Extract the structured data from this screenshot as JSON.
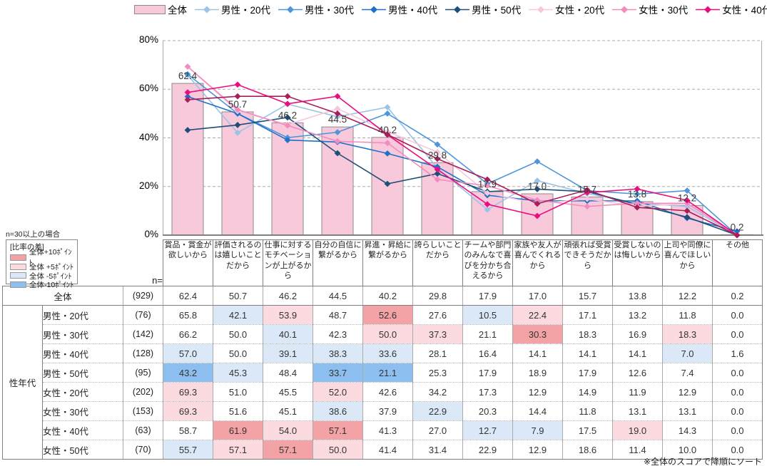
{
  "chart_data": {
    "type": "bar+line",
    "title": "",
    "categories": [
      "賞品・賞金が欲しいから",
      "評価されるのは嬉しいことだから",
      "仕事に対するモチベーションが上がるから",
      "自分の自信に繋がるから",
      "昇進・昇給に繋がるから",
      "誇らしいことだから",
      "チームや部門のみんなで喜びを分かち合えるから",
      "家族や友人が喜んでくれるから",
      "頑張れば受賞できそうだから",
      "受賞しないのは悔しいから",
      "上司や同僚に喜んでほしいから",
      "その他"
    ],
    "y_axis": {
      "min": 0,
      "max": 80,
      "tick_step": 20,
      "unit": "%",
      "tick_labels": [
        "0%",
        "20%",
        "40%",
        "60%",
        "80%"
      ],
      "grid": "dashed"
    },
    "bar_series": {
      "name": "全体",
      "values": [
        62.4,
        50.7,
        46.2,
        44.5,
        40.2,
        29.8,
        17.9,
        17.0,
        15.7,
        13.8,
        12.2,
        0.2
      ],
      "fill": "#F8C9DB",
      "stroke": "#8C8C8C",
      "data_labels": true
    },
    "line_series": [
      {
        "name": "男性・20代",
        "color": "#9CC3E6",
        "values": [
          65.8,
          42.1,
          53.9,
          48.7,
          52.6,
          27.6,
          10.5,
          22.4,
          17.1,
          13.2,
          11.8,
          0.0
        ]
      },
      {
        "name": "男性・30代",
        "color": "#4E95D9",
        "values": [
          66.2,
          50.0,
          40.1,
          42.3,
          50.0,
          37.3,
          21.1,
          30.3,
          18.3,
          16.9,
          18.3,
          0.0
        ]
      },
      {
        "name": "男性・40代",
        "color": "#2071C9",
        "values": [
          57.0,
          50.0,
          39.1,
          38.3,
          33.6,
          28.1,
          16.4,
          14.1,
          14.1,
          14.1,
          7.0,
          1.6
        ]
      },
      {
        "name": "男性・50代",
        "color": "#1F4E79",
        "values": [
          43.2,
          45.3,
          48.4,
          33.7,
          21.1,
          25.3,
          17.9,
          18.9,
          17.9,
          12.6,
          7.4,
          0.0
        ]
      },
      {
        "name": "女性・20代",
        "color": "#F7C7DB",
        "values": [
          69.3,
          51.0,
          45.5,
          52.0,
          42.6,
          34.2,
          17.3,
          12.9,
          14.9,
          11.9,
          12.9,
          0.0
        ]
      },
      {
        "name": "女性・30代",
        "color": "#F38BC0",
        "values": [
          69.3,
          51.6,
          45.1,
          38.6,
          37.9,
          22.9,
          20.3,
          14.4,
          11.8,
          13.1,
          13.1,
          0.0
        ]
      },
      {
        "name": "女性・40代",
        "color": "#EB0D7E",
        "values": [
          58.7,
          61.9,
          54.0,
          57.1,
          41.3,
          27.0,
          12.7,
          7.9,
          17.5,
          19.0,
          14.3,
          0.0
        ]
      },
      {
        "name": "女性・50代",
        "color": "#A91E57",
        "values": [
          55.7,
          57.1,
          57.1,
          50.0,
          41.4,
          31.4,
          22.9,
          12.9,
          18.6,
          11.4,
          10.0,
          0.0
        ]
      }
    ]
  },
  "diff_legend": {
    "note": "n=30以上の場合",
    "title": "[比率の差]",
    "items": [
      {
        "key": "p10",
        "label": "全体+10ﾎﾟｲﾝﾄ",
        "color": "#F3A2A6"
      },
      {
        "key": "p5",
        "label": "全体 +5ﾎﾟｲﾝﾄ",
        "color": "#FBDAE0"
      },
      {
        "key": "m5",
        "label": "全体 -5ﾎﾟｲﾝﾄ",
        "color": "#DAE8F8"
      },
      {
        "key": "m10",
        "label": "全体-10ﾎﾟｲﾝﾄ",
        "color": "#8CBEEF"
      }
    ]
  },
  "table": {
    "n_label": "n=",
    "group_label": "性年代",
    "row_labels": [
      "全体",
      "男性・20代",
      "男性・30代",
      "男性・40代",
      "男性・50代",
      "女性・20代",
      "女性・30代",
      "女性・40代",
      "女性・50代"
    ],
    "n_values": [
      929,
      76,
      142,
      128,
      95,
      202,
      153,
      63,
      70
    ]
  },
  "footnote": "※全体のスコアで降順にソート"
}
